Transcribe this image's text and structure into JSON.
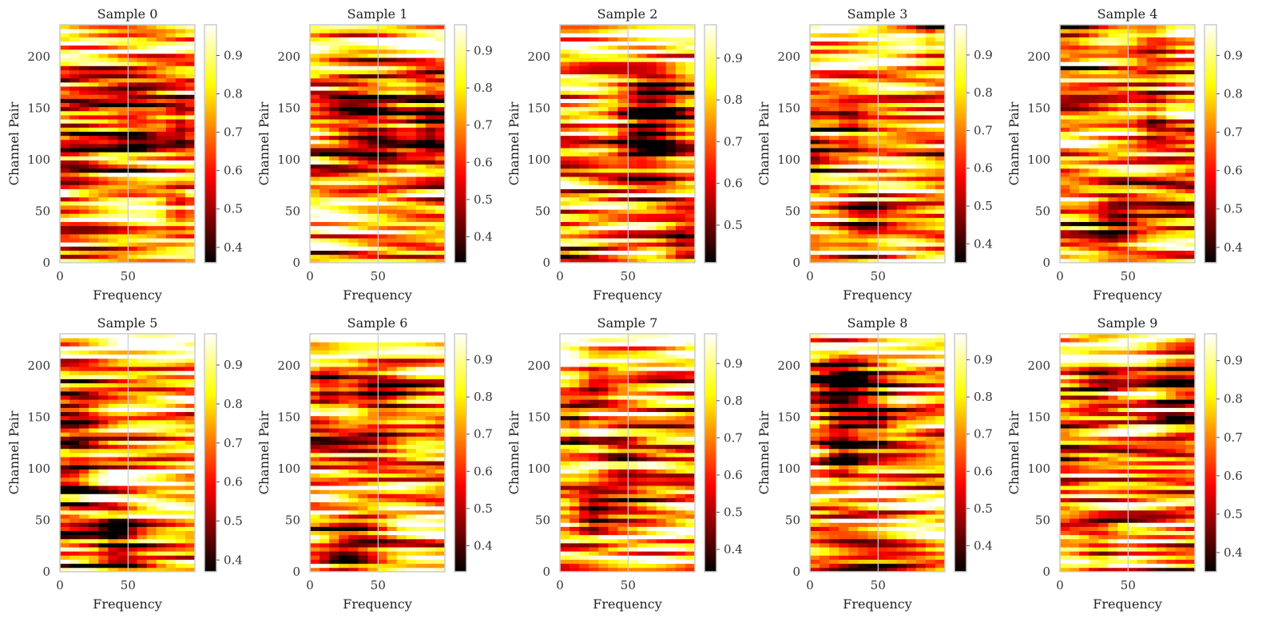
{
  "chart_data": {
    "type": "heatmap",
    "colormap": "hot",
    "grid": true,
    "xlim": [
      0,
      99
    ],
    "ylim": [
      0,
      231
    ],
    "x_ticks": [
      0,
      50
    ],
    "y_ticks": [
      0,
      50,
      100,
      150,
      200
    ],
    "colorbar_ticks": [
      "0.4",
      "0.5",
      "0.6",
      "0.7",
      "0.8",
      "0.9"
    ],
    "panels": [
      {
        "title": "Sample 0",
        "xlabel": "Frequency",
        "ylabel": "Channel Pair",
        "vmin": 0.36,
        "vmax": 0.98,
        "colorbar_ticks": [
          0.4,
          0.5,
          0.6,
          0.7,
          0.8,
          0.9
        ]
      },
      {
        "title": "Sample 1",
        "xlabel": "Frequency",
        "ylabel": "Channel Pair",
        "vmin": 0.33,
        "vmax": 0.97,
        "colorbar_ticks": [
          0.4,
          0.5,
          0.6,
          0.7,
          0.8,
          0.9
        ]
      },
      {
        "title": "Sample 2",
        "xlabel": "Frequency",
        "ylabel": "Channel Pair",
        "vmin": 0.41,
        "vmax": 0.98,
        "colorbar_ticks": [
          0.5,
          0.6,
          0.7,
          0.8,
          0.9
        ]
      },
      {
        "title": "Sample 3",
        "xlabel": "Frequency",
        "ylabel": "Channel Pair",
        "vmin": 0.35,
        "vmax": 0.98,
        "colorbar_ticks": [
          0.4,
          0.5,
          0.6,
          0.7,
          0.8,
          0.9
        ]
      },
      {
        "title": "Sample 4",
        "xlabel": "Frequency",
        "ylabel": "Channel Pair",
        "vmin": 0.36,
        "vmax": 0.98,
        "colorbar_ticks": [
          0.4,
          0.5,
          0.6,
          0.7,
          0.8,
          0.9
        ]
      },
      {
        "title": "Sample 5",
        "xlabel": "Frequency",
        "ylabel": "Channel Pair",
        "vmin": 0.37,
        "vmax": 0.98,
        "colorbar_ticks": [
          0.4,
          0.5,
          0.6,
          0.7,
          0.8,
          0.9
        ]
      },
      {
        "title": "Sample 6",
        "xlabel": "Frequency",
        "ylabel": "Channel Pair",
        "vmin": 0.33,
        "vmax": 0.97,
        "colorbar_ticks": [
          0.4,
          0.5,
          0.6,
          0.7,
          0.8,
          0.9
        ]
      },
      {
        "title": "Sample 7",
        "xlabel": "Frequency",
        "ylabel": "Channel Pair",
        "vmin": 0.34,
        "vmax": 0.98,
        "colorbar_ticks": [
          0.4,
          0.5,
          0.6,
          0.7,
          0.8,
          0.9
        ]
      },
      {
        "title": "Sample 8",
        "xlabel": "Frequency",
        "ylabel": "Channel Pair",
        "vmin": 0.33,
        "vmax": 0.97,
        "colorbar_ticks": [
          0.4,
          0.5,
          0.6,
          0.7,
          0.8,
          0.9
        ]
      },
      {
        "title": "Sample 9",
        "xlabel": "Frequency",
        "ylabel": "Channel Pair",
        "vmin": 0.35,
        "vmax": 0.97,
        "colorbar_ticks": [
          0.4,
          0.5,
          0.6,
          0.7,
          0.8,
          0.9
        ]
      }
    ]
  }
}
